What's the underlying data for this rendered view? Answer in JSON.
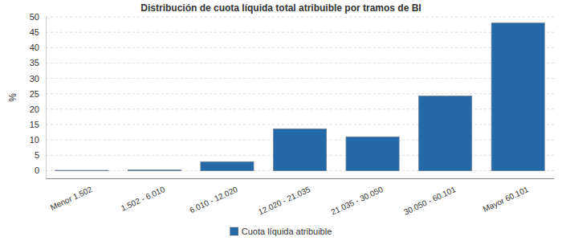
{
  "chart_data": {
    "type": "bar",
    "title": "Distribución de cuota líquida total atribuible por tramos de BI",
    "y_label": "%",
    "categories": [
      "Menor 1.502",
      "1.502 - 6.010",
      "6.010 - 12.020",
      "12.020 - 21.035",
      "21.035 - 30.050",
      "30.050 - 60.101",
      "Mayor 60.101"
    ],
    "series": [
      {
        "name": "Cuota líquida atribuible",
        "color": "#2369a8",
        "values": [
          0.1,
          0.2,
          2.9,
          13.6,
          11.0,
          24.3,
          48.0
        ]
      }
    ],
    "ylim": [
      -2.5,
      50
    ],
    "yticks": [
      0,
      5,
      10,
      15,
      20,
      25,
      30,
      35,
      40,
      45,
      50
    ],
    "grid": true,
    "legend": "bottom"
  }
}
